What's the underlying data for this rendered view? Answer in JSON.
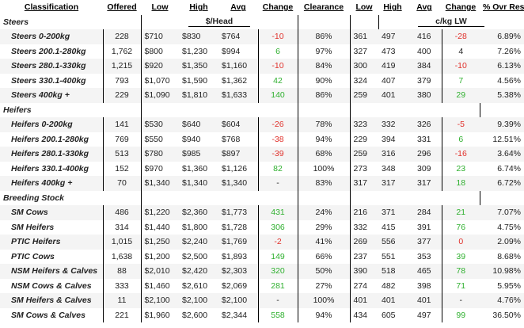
{
  "headers": {
    "classification": "Classification",
    "offered": "Offered",
    "low": "Low",
    "high": "High",
    "avg": "Avg",
    "change": "Change",
    "clearance": "Clearance",
    "low2": "Low",
    "high2": "High",
    "avg2": "Avg",
    "change2": "Change",
    "ovr_res": "% Ovr Res"
  },
  "subheaders": {
    "per_head": "$/Head",
    "per_kg": "c/kg LW"
  },
  "sections": [
    {
      "title": "Steers",
      "rows": [
        {
          "cls": "Steers 0-200kg",
          "offered": "228",
          "low": "$710",
          "high": "$830",
          "avg": "$764",
          "change": "-10",
          "change_type": "neg",
          "clearance": "86%",
          "low2": "361",
          "high2": "497",
          "avg2": "416",
          "change2": "-28",
          "change2_type": "neg",
          "ovr": "6.89%"
        },
        {
          "cls": "Steers 200.1-280kg",
          "offered": "1,762",
          "low": "$800",
          "high": "$1,230",
          "avg": "$994",
          "change": "6",
          "change_type": "pos",
          "clearance": "97%",
          "low2": "327",
          "high2": "473",
          "avg2": "400",
          "change2": "4",
          "change2_type": "neu",
          "ovr": "7.26%"
        },
        {
          "cls": "Steers 280.1-330kg",
          "offered": "1,215",
          "low": "$920",
          "high": "$1,350",
          "avg": "$1,160",
          "change": "-10",
          "change_type": "neg",
          "clearance": "84%",
          "low2": "300",
          "high2": "419",
          "avg2": "384",
          "change2": "-10",
          "change2_type": "neg",
          "ovr": "6.13%"
        },
        {
          "cls": "Steers 330.1-400kg",
          "offered": "793",
          "low": "$1,070",
          "high": "$1,590",
          "avg": "$1,362",
          "change": "42",
          "change_type": "pos",
          "clearance": "90%",
          "low2": "324",
          "high2": "407",
          "avg2": "379",
          "change2": "7",
          "change2_type": "pos",
          "ovr": "4.56%"
        },
        {
          "cls": "Steers 400kg +",
          "offered": "229",
          "low": "$1,090",
          "high": "$1,810",
          "avg": "$1,633",
          "change": "140",
          "change_type": "pos",
          "clearance": "86%",
          "low2": "259",
          "high2": "401",
          "avg2": "380",
          "change2": "29",
          "change2_type": "pos",
          "ovr": "5.38%"
        }
      ]
    },
    {
      "title": "Heifers",
      "rows": [
        {
          "cls": "Heifers 0-200kg",
          "offered": "141",
          "low": "$530",
          "high": "$640",
          "avg": "$604",
          "change": "-26",
          "change_type": "neg",
          "clearance": "78%",
          "low2": "323",
          "high2": "332",
          "avg2": "326",
          "change2": "-5",
          "change2_type": "neg",
          "ovr": "9.39%"
        },
        {
          "cls": "Heifers 200.1-280kg",
          "offered": "769",
          "low": "$550",
          "high": "$940",
          "avg": "$768",
          "change": "-38",
          "change_type": "neg",
          "clearance": "94%",
          "low2": "229",
          "high2": "394",
          "avg2": "331",
          "change2": "6",
          "change2_type": "pos",
          "ovr": "12.51%"
        },
        {
          "cls": "Heifers 280.1-330kg",
          "offered": "513",
          "low": "$780",
          "high": "$985",
          "avg": "$897",
          "change": "-39",
          "change_type": "neg",
          "clearance": "68%",
          "low2": "259",
          "high2": "316",
          "avg2": "296",
          "change2": "-16",
          "change2_type": "neg",
          "ovr": "3.64%"
        },
        {
          "cls": "Heifers 330.1-400kg",
          "offered": "152",
          "low": "$970",
          "high": "$1,360",
          "avg": "$1,126",
          "change": "82",
          "change_type": "pos",
          "clearance": "100%",
          "low2": "273",
          "high2": "348",
          "avg2": "309",
          "change2": "23",
          "change2_type": "pos",
          "ovr": "6.74%"
        },
        {
          "cls": "Heifers 400kg +",
          "offered": "70",
          "low": "$1,340",
          "high": "$1,340",
          "avg": "$1,340",
          "change": "-",
          "change_type": "neu",
          "clearance": "83%",
          "low2": "317",
          "high2": "317",
          "avg2": "317",
          "change2": "18",
          "change2_type": "pos",
          "ovr": "6.72%"
        }
      ]
    },
    {
      "title": "Breeding Stock",
      "rows": [
        {
          "cls": "SM Cows",
          "offered": "486",
          "low": "$1,220",
          "high": "$2,360",
          "avg": "$1,773",
          "change": "431",
          "change_type": "pos",
          "clearance": "24%",
          "low2": "216",
          "high2": "371",
          "avg2": "284",
          "change2": "21",
          "change2_type": "pos",
          "ovr": "7.07%"
        },
        {
          "cls": "SM Heifers",
          "offered": "314",
          "low": "$1,440",
          "high": "$1,800",
          "avg": "$1,728",
          "change": "306",
          "change_type": "pos",
          "clearance": "29%",
          "low2": "332",
          "high2": "415",
          "avg2": "391",
          "change2": "76",
          "change2_type": "pos",
          "ovr": "4.75%"
        },
        {
          "cls": "PTIC Heifers",
          "offered": "1,015",
          "low": "$1,250",
          "high": "$2,240",
          "avg": "$1,769",
          "change": "-2",
          "change_type": "neg",
          "clearance": "41%",
          "low2": "269",
          "high2": "556",
          "avg2": "377",
          "change2": "0",
          "change2_type": "neg",
          "ovr": "2.09%"
        },
        {
          "cls": "PTIC Cows",
          "offered": "1,638",
          "low": "$1,200",
          "high": "$2,500",
          "avg": "$1,893",
          "change": "149",
          "change_type": "pos",
          "clearance": "66%",
          "low2": "237",
          "high2": "551",
          "avg2": "353",
          "change2": "39",
          "change2_type": "pos",
          "ovr": "8.68%"
        },
        {
          "cls": "NSM Heifers & Calves",
          "offered": "88",
          "low": "$2,010",
          "high": "$2,420",
          "avg": "$2,303",
          "change": "320",
          "change_type": "pos",
          "clearance": "50%",
          "low2": "390",
          "high2": "518",
          "avg2": "465",
          "change2": "78",
          "change2_type": "pos",
          "ovr": "10.98%"
        },
        {
          "cls": "NSM Cows & Calves",
          "offered": "333",
          "low": "$1,460",
          "high": "$2,610",
          "avg": "$2,069",
          "change": "281",
          "change_type": "pos",
          "clearance": "27%",
          "low2": "274",
          "high2": "482",
          "avg2": "398",
          "change2": "71",
          "change2_type": "pos",
          "ovr": "5.95%"
        },
        {
          "cls": "SM Heifers & Calves",
          "offered": "11",
          "low": "$2,100",
          "high": "$2,100",
          "avg": "$2,100",
          "change": "-",
          "change_type": "neu",
          "clearance": "100%",
          "low2": "401",
          "high2": "401",
          "avg2": "401",
          "change2": "-",
          "change2_type": "neu",
          "ovr": "4.76%"
        },
        {
          "cls": "SM Cows & Calves",
          "offered": "221",
          "low": "$1,960",
          "high": "$2,600",
          "avg": "$2,344",
          "change": "558",
          "change_type": "pos",
          "clearance": "94%",
          "low2": "434",
          "high2": "605",
          "avg2": "497",
          "change2": "99",
          "change2_type": "pos",
          "ovr": "36.50%"
        }
      ]
    }
  ]
}
